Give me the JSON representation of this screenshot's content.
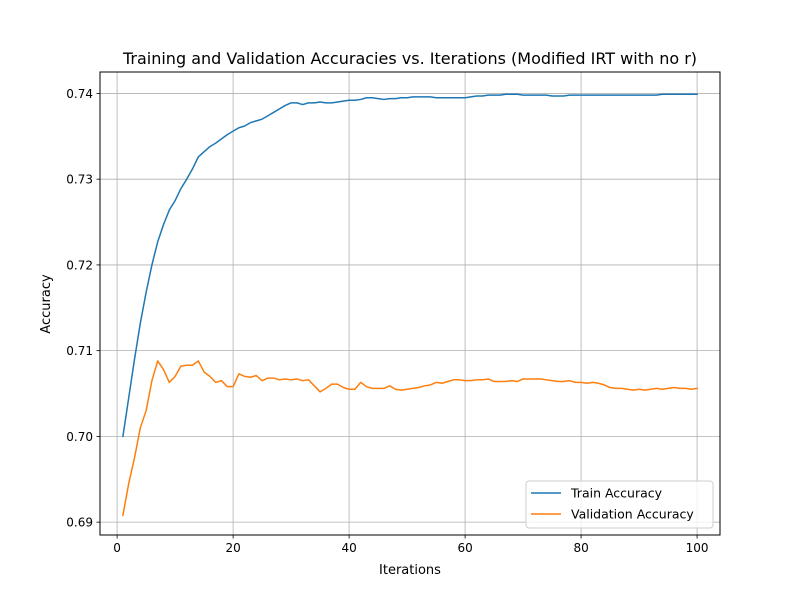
{
  "chart_data": {
    "type": "line",
    "title": "Training and Validation Accuracies vs. Iterations (Modified IRT with no r)",
    "xlabel": "Iterations",
    "ylabel": "Accuracy",
    "xlim": [
      -2.95,
      103.95
    ],
    "ylim": [
      0.6885,
      0.7425
    ],
    "xticks": [
      0,
      20,
      40,
      60,
      80,
      100
    ],
    "xtick_labels": [
      "0",
      "20",
      "40",
      "60",
      "80",
      "100"
    ],
    "yticks": [
      0.69,
      0.7,
      0.71,
      0.72,
      0.73,
      0.74
    ],
    "ytick_labels": [
      "0.69",
      "0.70",
      "0.71",
      "0.72",
      "0.73",
      "0.74"
    ],
    "grid": true,
    "legend_position": "lower-right",
    "x": [
      1,
      2,
      3,
      4,
      5,
      6,
      7,
      8,
      9,
      10,
      11,
      12,
      13,
      14,
      15,
      16,
      17,
      18,
      19,
      20,
      21,
      22,
      23,
      24,
      25,
      26,
      27,
      28,
      29,
      30,
      31,
      32,
      33,
      34,
      35,
      36,
      37,
      38,
      39,
      40,
      41,
      42,
      43,
      44,
      45,
      46,
      47,
      48,
      49,
      50,
      51,
      52,
      53,
      54,
      55,
      56,
      57,
      58,
      59,
      60,
      61,
      62,
      63,
      64,
      65,
      66,
      67,
      68,
      69,
      70,
      71,
      72,
      73,
      74,
      75,
      76,
      77,
      78,
      79,
      80,
      81,
      82,
      83,
      84,
      85,
      86,
      87,
      88,
      89,
      90,
      91,
      92,
      93,
      94,
      95,
      96,
      97,
      98,
      99,
      100
    ],
    "series": [
      {
        "name": "Train Accuracy",
        "color": "#1f77b4",
        "values": [
          0.7,
          0.7045,
          0.709,
          0.7132,
          0.7168,
          0.72,
          0.7227,
          0.7247,
          0.7264,
          0.7275,
          0.7289,
          0.73,
          0.7312,
          0.7326,
          0.7332,
          0.7338,
          0.7342,
          0.7347,
          0.7352,
          0.7356,
          0.736,
          0.7362,
          0.7366,
          0.7368,
          0.737,
          0.7374,
          0.7378,
          0.7382,
          0.7386,
          0.7389,
          0.7389,
          0.7387,
          0.7389,
          0.7389,
          0.739,
          0.7389,
          0.7389,
          0.739,
          0.7391,
          0.7392,
          0.7392,
          0.7393,
          0.7395,
          0.7395,
          0.7394,
          0.7393,
          0.7394,
          0.7394,
          0.7395,
          0.7395,
          0.7396,
          0.7396,
          0.7396,
          0.7396,
          0.7395,
          0.7395,
          0.7395,
          0.7395,
          0.7395,
          0.7395,
          0.7396,
          0.7397,
          0.7397,
          0.7398,
          0.7398,
          0.7398,
          0.7399,
          0.7399,
          0.7399,
          0.7398,
          0.7398,
          0.7398,
          0.7398,
          0.7398,
          0.7397,
          0.7397,
          0.7397,
          0.7398,
          0.7398,
          0.7398,
          0.7398,
          0.7398,
          0.7398,
          0.7398,
          0.7398,
          0.7398,
          0.7398,
          0.7398,
          0.7398,
          0.7398,
          0.7398,
          0.7398,
          0.7398,
          0.7399,
          0.7399,
          0.7399,
          0.7399,
          0.7399,
          0.7399,
          0.7399
        ]
      },
      {
        "name": "Validation Accuracy",
        "color": "#ff7f0e",
        "values": [
          0.6908,
          0.6945,
          0.6975,
          0.701,
          0.703,
          0.7065,
          0.7088,
          0.7078,
          0.7063,
          0.707,
          0.7082,
          0.7083,
          0.7083,
          0.7088,
          0.7075,
          0.707,
          0.7063,
          0.7065,
          0.7058,
          0.7058,
          0.7073,
          0.707,
          0.7069,
          0.7071,
          0.7065,
          0.7068,
          0.7068,
          0.7066,
          0.7067,
          0.7066,
          0.7067,
          0.7065,
          0.7066,
          0.7059,
          0.7052,
          0.7056,
          0.7061,
          0.7061,
          0.7057,
          0.7055,
          0.7055,
          0.7063,
          0.7058,
          0.7056,
          0.7056,
          0.7056,
          0.7059,
          0.7055,
          0.7054,
          0.7055,
          0.7056,
          0.7057,
          0.7059,
          0.706,
          0.7063,
          0.7062,
          0.7064,
          0.7066,
          0.7066,
          0.7065,
          0.7065,
          0.7066,
          0.7066,
          0.7067,
          0.7064,
          0.7064,
          0.7064,
          0.7065,
          0.7064,
          0.7067,
          0.7067,
          0.7067,
          0.7067,
          0.7066,
          0.7065,
          0.7064,
          0.7064,
          0.7065,
          0.7063,
          0.7063,
          0.7062,
          0.7063,
          0.7062,
          0.706,
          0.7057,
          0.7056,
          0.7056,
          0.7055,
          0.7054,
          0.7055,
          0.7054,
          0.7055,
          0.7056,
          0.7055,
          0.7056,
          0.7057,
          0.7056,
          0.7056,
          0.7055,
          0.7056
        ]
      }
    ]
  }
}
